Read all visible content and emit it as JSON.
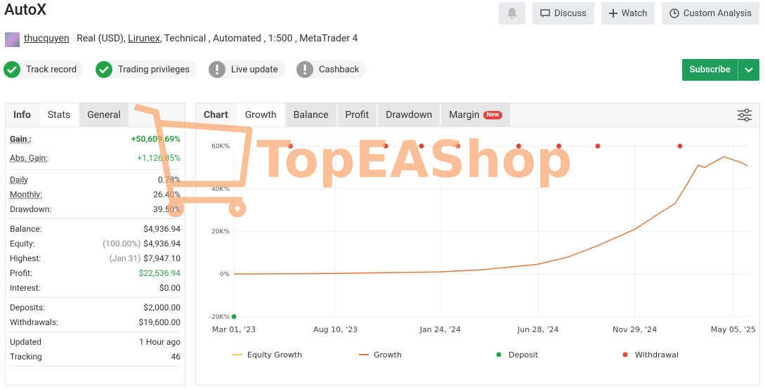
{
  "header": {
    "title": "AutoX",
    "buttons": [
      "Discuss",
      "Watch",
      "Custom Analysis"
    ]
  },
  "account": {
    "user": "thucquyen",
    "type": "Real (USD),",
    "broker": "Lirunex",
    "details": ", Technical , Automated , 1:500 , MetaTrader 4"
  },
  "badges": [
    {
      "label": "Track record",
      "status": "ok"
    },
    {
      "label": "Trading privileges",
      "status": "ok"
    },
    {
      "label": "Live update",
      "status": "warn"
    },
    {
      "label": "Cashback",
      "status": "warn"
    }
  ],
  "subscribe": "Subscribe",
  "stats": {
    "tabs": [
      "Info",
      "Stats",
      "General"
    ],
    "groups": [
      [
        {
          "label": "Gain :",
          "value": "+50,609.69%",
          "color": "#2ea043",
          "strong": true
        },
        {
          "label": "Abs. Gain:",
          "value": "+1,126.85%",
          "color": "#2ea043",
          "underline": true
        }
      ],
      [
        {
          "label": "Daily",
          "value": "0.78%",
          "underline": true
        },
        {
          "label": "Monthly:",
          "value": "26.40%",
          "underline": true
        },
        {
          "label": "Drawdown:",
          "value": "39.50%"
        }
      ],
      [
        {
          "label": "Balance:",
          "value": "$4,936.94"
        },
        {
          "label": "Equity:",
          "note": "(100.00%)",
          "value": "$4,936.94"
        },
        {
          "label": "Highest:",
          "note": "(Jan 31)",
          "value": "$7,947.10"
        },
        {
          "label": "Profit:",
          "value": "$22,536.94",
          "color": "#2ea043"
        },
        {
          "label": "Interest:",
          "value": "$0.00"
        }
      ],
      [
        {
          "label": "Deposits:",
          "value": "$2,000.00"
        },
        {
          "label": "Withdrawals:",
          "value": "$19,600.00"
        }
      ],
      [
        {
          "label": "Updated",
          "value": "1 Hour ago"
        },
        {
          "label": "Tracking",
          "value": "46"
        }
      ]
    ]
  },
  "chart_tabs": {
    "label": "Chart",
    "tabs": [
      "Growth",
      "Balance",
      "Profit",
      "Drawdown",
      "Margin"
    ],
    "badge": "New"
  },
  "watermark": "TopEAShop",
  "chart_data": {
    "type": "line",
    "xlim": [
      "2023-03-01",
      "2025-06-01"
    ],
    "xticks": [
      {
        "value": "2023-03-01",
        "label": "Mar 01, '23"
      },
      {
        "value": "2023-08-10",
        "label": "Aug 10, '23"
      },
      {
        "value": "2024-01-24",
        "label": "Jan 24, '24"
      },
      {
        "value": "2024-06-28",
        "label": "Jun 28, '24"
      },
      {
        "value": "2024-11-29",
        "label": "Nov 29, '24"
      },
      {
        "value": "2025-05-05",
        "label": "May 05, '25"
      }
    ],
    "ylim": [
      -20000,
      60000
    ],
    "yticks": [
      {
        "value": -20000,
        "label": "-20K%"
      },
      {
        "value": 0,
        "label": "0%"
      },
      {
        "value": 20000,
        "label": "20K%"
      },
      {
        "value": 40000,
        "label": "40K%"
      },
      {
        "value": 60000,
        "label": "60K%"
      }
    ],
    "grid": true,
    "series": [
      {
        "name": "Equity Growth",
        "color": "#f2c94c",
        "marker": "line"
      },
      {
        "name": "Growth",
        "color": "#e07a3f",
        "marker": "line",
        "x": [
          "2023-03-01",
          "2023-08-10",
          "2024-01-24",
          "2024-04-01",
          "2024-06-28",
          "2024-08-15",
          "2024-10-01",
          "2024-11-29",
          "2025-01-10",
          "2025-02-01",
          "2025-02-20",
          "2025-03-10",
          "2025-03-20",
          "2025-04-20",
          "2025-05-20",
          "2025-05-28"
        ],
        "values": [
          0,
          300,
          1000,
          2000,
          4600,
          8000,
          13300,
          21000,
          29000,
          33000,
          42000,
          51000,
          50000,
          55000,
          52000,
          50500
        ]
      },
      {
        "name": "Deposit",
        "color": "#22a447",
        "marker": "dot",
        "position": "bottom",
        "x": [
          "2023-03-01"
        ]
      },
      {
        "name": "Withdrawal",
        "color": "#e0443a",
        "marker": "dot",
        "position": "top",
        "x": [
          "2023-05-30",
          "2023-10-29",
          "2023-12-25",
          "2024-02-21",
          "2024-05-28",
          "2024-07-31",
          "2024-10-01",
          "2025-02-09"
        ]
      }
    ]
  }
}
